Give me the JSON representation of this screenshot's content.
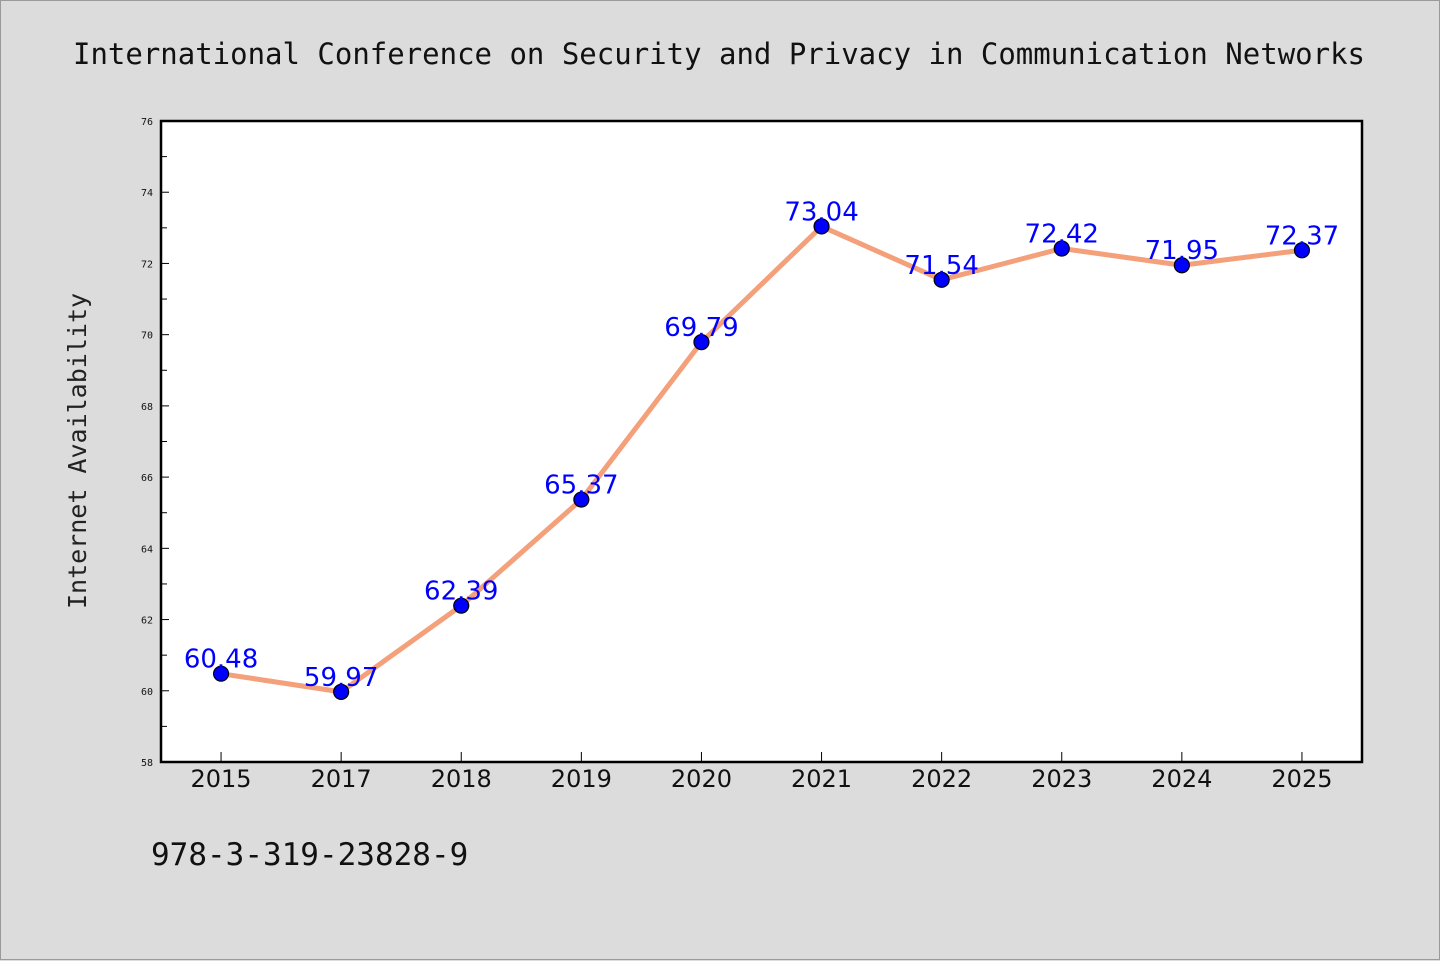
{
  "chart_data": {
    "type": "line",
    "title": "International Conference on Security and Privacy in Communication Networks",
    "xlabel": "",
    "ylabel": "Internet Availability",
    "categories": [
      "2015",
      "2017",
      "2018",
      "2019",
      "2020",
      "2021",
      "2022",
      "2023",
      "2024",
      "2025"
    ],
    "series": [
      {
        "values": [
          60.48,
          59.97,
          62.39,
          65.37,
          69.79,
          73.04,
          71.54,
          72.42,
          71.95,
          72.37
        ],
        "value_labels": [
          "60.48",
          "59.97",
          "62.39",
          "65.37",
          "69.79",
          "73.04",
          "71.54",
          "72.42",
          "71.95",
          "72.37"
        ]
      }
    ],
    "ylim": [
      58,
      76
    ],
    "yticks": [
      58,
      60,
      62,
      64,
      66,
      68,
      70,
      72,
      74,
      76
    ],
    "grid": false,
    "line_color": "#f4a07a",
    "marker_color": "#0000ff",
    "label_color": "#0000ff"
  },
  "footer": {
    "code": "978-3-319-23828-9"
  }
}
